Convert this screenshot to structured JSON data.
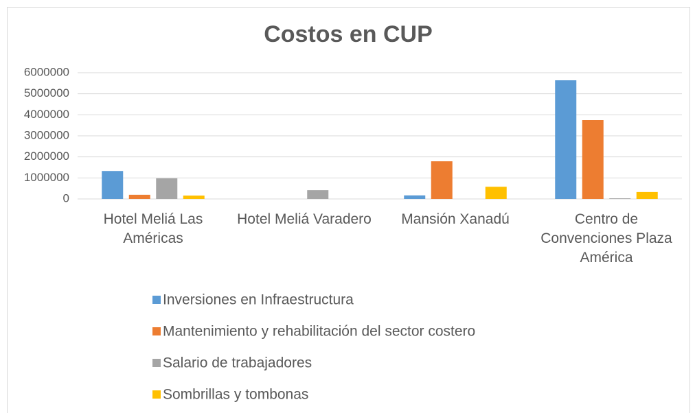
{
  "chart_data": {
    "type": "bar",
    "title": "Costos en CUP",
    "categories": [
      "Hotel Meliá Las Américas",
      "Hotel Meliá Varadero",
      "Mansión Xanadú",
      "Centro de Convenciones Plaza América"
    ],
    "series": [
      {
        "name": "Inversiones en Infraestructura",
        "color": "#5b9bd5",
        "values": [
          1330000,
          0,
          170000,
          5640000
        ]
      },
      {
        "name": "Mantenimiento y rehabilitación del sector costero",
        "color": "#ed7d31",
        "values": [
          200000,
          0,
          1790000,
          3750000
        ]
      },
      {
        "name": "Salario de trabajadores",
        "color": "#a5a5a5",
        "values": [
          980000,
          420000,
          0,
          30000
        ]
      },
      {
        "name": "Sombrillas y tombonas",
        "color": "#ffc000",
        "values": [
          160000,
          0,
          580000,
          330000
        ]
      }
    ],
    "ylim": [
      0,
      6000000
    ],
    "yticks": [
      0,
      1000000,
      2000000,
      3000000,
      4000000,
      5000000,
      6000000
    ],
    "grid": true,
    "legend": "bottom"
  }
}
